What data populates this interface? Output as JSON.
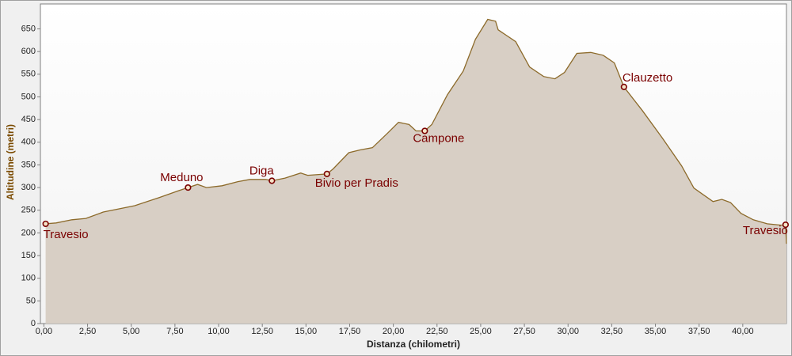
{
  "chart_data": {
    "type": "area",
    "x_label": "Distanza (chilometri)",
    "y_label": "Altitudine (metri)",
    "x": [
      0.1,
      0.7,
      1.6,
      2.4,
      3.4,
      4.3,
      5.2,
      6.6,
      7.7,
      8.25,
      8.8,
      9.3,
      10.2,
      11.1,
      11.8,
      12.7,
      13.05,
      13.8,
      14.7,
      15.1,
      16.2,
      16.55,
      17.45,
      18.1,
      18.8,
      19.7,
      20.3,
      20.9,
      21.3,
      21.8,
      22.2,
      23.1,
      24.0,
      24.7,
      25.4,
      25.85,
      26.0,
      27.0,
      27.8,
      28.6,
      29.25,
      29.8,
      30.5,
      31.3,
      32.0,
      32.65,
      33.2,
      34.25,
      35.4,
      36.5,
      37.2,
      38.3,
      38.8,
      39.3,
      39.9,
      40.6,
      41.4,
      42.2,
      42.45,
      42.5
    ],
    "values": [
      220,
      222,
      229,
      232,
      246,
      253,
      260,
      278,
      293,
      300,
      307,
      300,
      304,
      313,
      318,
      318,
      315,
      321,
      332,
      327,
      330,
      341,
      377,
      383,
      388,
      421,
      444,
      439,
      425,
      425,
      439,
      505,
      557,
      627,
      671,
      667,
      648,
      622,
      566,
      545,
      540,
      554,
      596,
      598,
      592,
      575,
      522,
      470,
      409,
      348,
      299,
      269,
      274,
      267,
      243,
      229,
      220,
      217,
      218,
      176
    ],
    "color": "#8c6a2a",
    "fill": "#d8cfc5",
    "waypoints": [
      {
        "label": "Travesio",
        "x": 0.1,
        "y": 220
      },
      {
        "label": "Meduno",
        "x": 8.25,
        "y": 300
      },
      {
        "label": "Diga",
        "x": 13.05,
        "y": 315
      },
      {
        "label": "Bivio per Pradis",
        "x": 16.2,
        "y": 330
      },
      {
        "label": "Campone",
        "x": 21.8,
        "y": 425
      },
      {
        "label": "Clauzetto",
        "x": 33.2,
        "y": 522
      },
      {
        "label": "Travesio",
        "x": 42.45,
        "y": 218
      }
    ],
    "xlim": [
      -0.2,
      42.5
    ],
    "ylim": [
      0,
      705
    ],
    "xticks": [
      {
        "value": 0,
        "label": "0,00"
      },
      {
        "value": 2.5,
        "label": "2,50"
      },
      {
        "value": 5,
        "label": "5,00"
      },
      {
        "value": 7.5,
        "label": "7,50"
      },
      {
        "value": 10,
        "label": "10,00"
      },
      {
        "value": 12.5,
        "label": "12,50"
      },
      {
        "value": 15,
        "label": "15,00"
      },
      {
        "value": 17.5,
        "label": "17,50"
      },
      {
        "value": 20,
        "label": "20,00"
      },
      {
        "value": 22.5,
        "label": "22,50"
      },
      {
        "value": 25,
        "label": "25,00"
      },
      {
        "value": 27.5,
        "label": "27,50"
      },
      {
        "value": 30,
        "label": "30,00"
      },
      {
        "value": 32.5,
        "label": "32,50"
      },
      {
        "value": 35,
        "label": "35,00"
      },
      {
        "value": 37.5,
        "label": "37,50"
      },
      {
        "value": 40,
        "label": "40,00"
      }
    ],
    "yticks": [
      0,
      50,
      100,
      150,
      200,
      250,
      300,
      350,
      400,
      450,
      500,
      550,
      600,
      650
    ],
    "grid": false
  }
}
